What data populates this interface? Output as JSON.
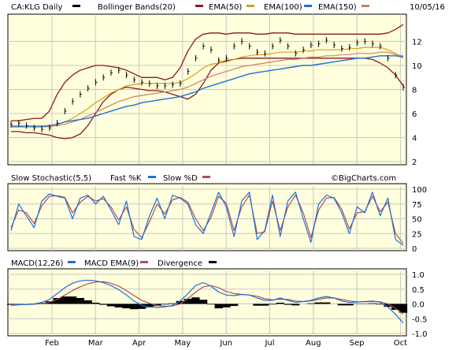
{
  "header": {
    "symbol_label": "CA:KLG Daily",
    "bollinger_label": "Bollinger Bands(20)",
    "ema50_label": "EMA(50)",
    "ema100_label": "EMA(100)",
    "ema150_label": "EMA(150)",
    "date": "10/05/16",
    "watermark": "©BigCharts.com"
  },
  "colors": {
    "panel_bg": "#ffffdd",
    "grid": "#c8c8c8",
    "price_bars": "#000000",
    "bollinger": "#8b1a1a",
    "ema50": "#8b0000",
    "ema100": "#d4a017",
    "ema150": "#1e6fd9",
    "ema150_legend": "#d08060",
    "fast_k": "#1e6fd9",
    "slow_d": "#b05050",
    "macd": "#1e6fd9",
    "macd_ema": "#b05050",
    "divergence": "#000000"
  },
  "chart_data": [
    {
      "type": "line",
      "panel": "price",
      "y_ticks": [
        2,
        4,
        6,
        8,
        10,
        12
      ],
      "ylim": [
        2,
        14
      ],
      "x_month_ticks": [
        "Feb",
        "Mar",
        "Apr",
        "May",
        "Jun",
        "Jul",
        "Aug",
        "Sep",
        "Oct"
      ],
      "grid": true,
      "legend": "top",
      "series": [
        {
          "name": "CA:KLG Daily",
          "role": "close",
          "values": [
            5.1,
            5.2,
            5.0,
            4.8,
            4.7,
            4.8,
            5.2,
            6.2,
            7.0,
            7.6,
            8.1,
            8.6,
            9.0,
            9.4,
            9.6,
            9.2,
            8.8,
            8.6,
            8.5,
            8.3,
            8.3,
            8.4,
            8.5,
            9.5,
            10.6,
            11.6,
            11.3,
            10.4,
            10.6,
            11.6,
            12.0,
            11.6,
            11.1,
            11.0,
            11.6,
            12.1,
            11.6,
            11.0,
            11.3,
            11.7,
            11.8,
            12.1,
            11.7,
            11.4,
            11.5,
            11.9,
            12.0,
            11.8,
            11.6,
            10.6,
            9.2,
            8.2
          ]
        },
        {
          "name": "Bollinger Upper",
          "role": "bollinger",
          "values": [
            5.4,
            5.4,
            5.5,
            5.6,
            5.6,
            6.2,
            7.6,
            8.6,
            9.2,
            9.6,
            9.8,
            10.0,
            10.0,
            9.9,
            9.8,
            9.6,
            9.3,
            9.0,
            9.0,
            9.0,
            8.8,
            9.0,
            9.8,
            11.2,
            12.2,
            12.6,
            12.7,
            12.7,
            12.6,
            12.7,
            12.7,
            12.7,
            12.6,
            12.6,
            12.7,
            12.7,
            12.7,
            12.6,
            12.6,
            12.6,
            12.6,
            12.6,
            12.6,
            12.6,
            12.6,
            12.6,
            12.6,
            12.6,
            12.6,
            12.7,
            13.0,
            13.4
          ]
        },
        {
          "name": "Bollinger Lower",
          "role": "bollinger",
          "values": [
            4.5,
            4.5,
            4.4,
            4.4,
            4.3,
            4.2,
            4.0,
            3.9,
            4.0,
            4.3,
            5.0,
            6.0,
            7.0,
            7.6,
            8.0,
            8.2,
            8.1,
            8.0,
            7.9,
            7.9,
            7.8,
            7.6,
            7.4,
            7.2,
            7.6,
            8.5,
            9.6,
            10.2,
            10.4,
            10.5,
            10.6,
            10.6,
            10.6,
            10.6,
            10.6,
            10.6,
            10.6,
            10.6,
            10.6,
            10.6,
            10.6,
            10.6,
            10.6,
            10.6,
            10.6,
            10.6,
            10.6,
            10.5,
            10.2,
            9.8,
            9.2,
            8.3
          ]
        },
        {
          "name": "EMA(50)",
          "role": "ema50",
          "values": [
            5.0,
            5.0,
            5.0,
            5.0,
            5.0,
            5.0,
            5.1,
            5.3,
            5.6,
            6.0,
            6.4,
            6.9,
            7.3,
            7.7,
            8.0,
            8.3,
            8.4,
            8.5,
            8.5,
            8.5,
            8.5,
            8.5,
            8.6,
            8.9,
            9.3,
            9.8,
            10.1,
            10.2,
            10.3,
            10.5,
            10.7,
            10.8,
            10.9,
            10.9,
            11.0,
            11.1,
            11.1,
            11.1,
            11.2,
            11.2,
            11.3,
            11.3,
            11.3,
            11.3,
            11.4,
            11.4,
            11.5,
            11.5,
            11.5,
            11.3,
            11.0,
            10.6
          ]
        },
        {
          "name": "EMA(100)",
          "role": "ema100",
          "values": [
            4.9,
            4.9,
            4.9,
            4.9,
            4.9,
            4.9,
            5.0,
            5.1,
            5.3,
            5.5,
            5.8,
            6.1,
            6.4,
            6.7,
            7.0,
            7.2,
            7.4,
            7.5,
            7.6,
            7.7,
            7.8,
            7.9,
            8.0,
            8.2,
            8.5,
            8.8,
            9.1,
            9.3,
            9.5,
            9.7,
            9.9,
            10.0,
            10.1,
            10.2,
            10.3,
            10.4,
            10.5,
            10.5,
            10.6,
            10.7,
            10.7,
            10.8,
            10.8,
            10.9,
            10.9,
            11.0,
            11.0,
            11.0,
            11.1,
            11.1,
            10.9,
            10.8
          ]
        },
        {
          "name": "EMA(150)",
          "role": "ema150",
          "values": [
            4.9,
            4.9,
            4.9,
            4.9,
            4.9,
            5.0,
            5.1,
            5.3,
            5.4,
            5.5,
            5.6,
            5.8,
            6.0,
            6.2,
            6.4,
            6.6,
            6.7,
            6.9,
            7.0,
            7.1,
            7.2,
            7.3,
            7.4,
            7.6,
            7.8,
            8.1,
            8.3,
            8.5,
            8.7,
            8.9,
            9.1,
            9.3,
            9.4,
            9.5,
            9.6,
            9.7,
            9.8,
            9.9,
            10.0,
            10.0,
            10.1,
            10.2,
            10.3,
            10.4,
            10.5,
            10.6,
            10.6,
            10.7,
            10.8,
            10.8,
            10.8,
            10.7
          ]
        }
      ]
    },
    {
      "type": "line",
      "panel": "stochastic",
      "title": "Slow Stochastic(5,5)",
      "y_ticks": [
        0,
        25,
        50,
        75,
        100
      ],
      "ylim": [
        0,
        100
      ],
      "grid": true,
      "series": [
        {
          "name": "Fast %K",
          "values": [
            30,
            75,
            55,
            35,
            80,
            92,
            88,
            85,
            50,
            85,
            90,
            75,
            88,
            65,
            40,
            80,
            20,
            15,
            55,
            85,
            50,
            90,
            85,
            75,
            40,
            25,
            60,
            95,
            70,
            20,
            80,
            95,
            15,
            30,
            90,
            20,
            80,
            95,
            50,
            10,
            75,
            90,
            85,
            60,
            25,
            70,
            60,
            95,
            55,
            85,
            15,
            5
          ]
        },
        {
          "name": "Slow %D",
          "values": [
            35,
            65,
            60,
            42,
            72,
            88,
            89,
            86,
            60,
            78,
            88,
            80,
            84,
            70,
            48,
            70,
            32,
            18,
            45,
            75,
            58,
            82,
            86,
            78,
            50,
            30,
            52,
            88,
            76,
            30,
            70,
            90,
            25,
            28,
            80,
            30,
            70,
            90,
            60,
            18,
            65,
            85,
            86,
            66,
            33,
            60,
            62,
            88,
            62,
            78,
            25,
            8
          ]
        }
      ]
    },
    {
      "type": "line",
      "panel": "macd",
      "title": "MACD(12,26)",
      "y_ticks": [
        1.0,
        0.5,
        0.0,
        -0.5,
        -1.0
      ],
      "ylim": [
        -1.0,
        1.0
      ],
      "grid": true,
      "series": [
        {
          "name": "MACD",
          "values": [
            -0.05,
            -0.03,
            -0.02,
            0.0,
            0.05,
            0.15,
            0.35,
            0.55,
            0.7,
            0.78,
            0.8,
            0.78,
            0.72,
            0.62,
            0.48,
            0.3,
            0.1,
            -0.05,
            -0.1,
            -0.12,
            -0.1,
            -0.05,
            0.1,
            0.35,
            0.62,
            0.72,
            0.6,
            0.4,
            0.3,
            0.28,
            0.32,
            0.3,
            0.2,
            0.12,
            0.12,
            0.2,
            0.12,
            0.05,
            0.08,
            0.12,
            0.2,
            0.25,
            0.2,
            0.1,
            0.05,
            0.06,
            0.08,
            0.1,
            0.05,
            -0.1,
            -0.35,
            -0.65
          ]
        },
        {
          "name": "MACD EMA(9)",
          "values": [
            -0.02,
            -0.02,
            -0.02,
            -0.01,
            0.01,
            0.06,
            0.15,
            0.3,
            0.45,
            0.58,
            0.68,
            0.74,
            0.75,
            0.7,
            0.6,
            0.45,
            0.28,
            0.12,
            0.02,
            -0.05,
            -0.08,
            -0.07,
            0.0,
            0.18,
            0.4,
            0.58,
            0.62,
            0.55,
            0.42,
            0.35,
            0.32,
            0.3,
            0.26,
            0.18,
            0.14,
            0.16,
            0.15,
            0.1,
            0.08,
            0.1,
            0.15,
            0.2,
            0.2,
            0.15,
            0.1,
            0.07,
            0.07,
            0.08,
            0.07,
            0.0,
            -0.15,
            -0.35
          ]
        },
        {
          "name": "Divergence",
          "values": [
            -0.03,
            -0.01,
            0.0,
            0.01,
            0.04,
            0.09,
            0.2,
            0.25,
            0.25,
            0.2,
            0.12,
            0.04,
            -0.03,
            -0.08,
            -0.12,
            -0.15,
            -0.18,
            -0.17,
            -0.12,
            -0.07,
            -0.02,
            0.02,
            0.1,
            0.17,
            0.22,
            0.14,
            -0.02,
            -0.15,
            -0.12,
            -0.07,
            0.0,
            0.0,
            -0.06,
            -0.06,
            -0.02,
            0.04,
            -0.03,
            -0.05,
            0.0,
            0.02,
            0.05,
            0.05,
            0.0,
            -0.05,
            -0.05,
            -0.01,
            0.01,
            0.02,
            -0.02,
            -0.1,
            -0.2,
            -0.3
          ]
        }
      ]
    }
  ],
  "panel_titles": {
    "stoch_fast": "Fast %K",
    "stoch_slow": "Slow %D",
    "macd_ema": "MACD EMA(9)",
    "divergence": "Divergence"
  }
}
